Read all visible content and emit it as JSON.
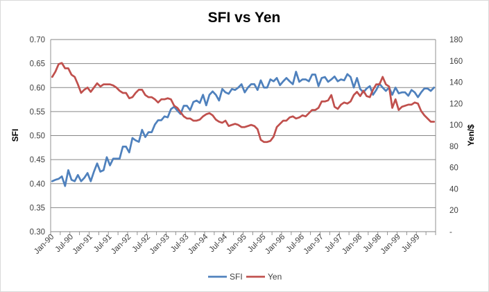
{
  "chart_data": {
    "type": "line",
    "title": "SFI vs Yen",
    "ylabel_left": "SFI",
    "ylabel_right": "Yen/$",
    "left_axis": {
      "min": 0.3,
      "max": 0.7,
      "step": 0.05,
      "tick_labels": [
        "0.30",
        "0.35",
        "0.40",
        "0.45",
        "0.50",
        "0.55",
        "0.60",
        "0.65",
        "0.70"
      ]
    },
    "right_axis": {
      "min": 0,
      "max": 180,
      "step": 20,
      "tick_labels": [
        "-",
        "20",
        "40",
        "60",
        "80",
        "100",
        "120",
        "140",
        "160",
        "180"
      ]
    },
    "x_tick_labels": [
      "Jan-90",
      "Jul-90",
      "Jan-91",
      "Jul-91",
      "Jan-92",
      "Jul-92",
      "Jan-93",
      "Jul-93",
      "Jan-94",
      "Jul-94",
      "Jan-95",
      "Jul-95",
      "Jan-96",
      "Jul-96",
      "Jan-97",
      "Jul-97",
      "Jan-98",
      "Jul-98",
      "Jan-99",
      "Jul-99"
    ],
    "grid": "horizontal",
    "legend_position": "bottom",
    "series": [
      {
        "name": "SFI",
        "axis": "left",
        "color": "#4f81bd",
        "start": "Jan-90",
        "frequency": "monthly",
        "values": [
          0.405,
          0.408,
          0.41,
          0.415,
          0.395,
          0.428,
          0.408,
          0.405,
          0.418,
          0.405,
          0.412,
          0.422,
          0.405,
          0.425,
          0.442,
          0.425,
          0.428,
          0.455,
          0.438,
          0.452,
          0.452,
          0.452,
          0.477,
          0.477,
          0.465,
          0.495,
          0.49,
          0.487,
          0.512,
          0.497,
          0.507,
          0.507,
          0.523,
          0.532,
          0.532,
          0.54,
          0.538,
          0.555,
          0.56,
          0.552,
          0.545,
          0.562,
          0.562,
          0.553,
          0.57,
          0.573,
          0.568,
          0.585,
          0.563,
          0.585,
          0.592,
          0.585,
          0.573,
          0.597,
          0.59,
          0.587,
          0.597,
          0.595,
          0.6,
          0.607,
          0.59,
          0.6,
          0.607,
          0.607,
          0.595,
          0.615,
          0.6,
          0.6,
          0.617,
          0.613,
          0.62,
          0.605,
          0.613,
          0.62,
          0.613,
          0.607,
          0.633,
          0.612,
          0.617,
          0.617,
          0.613,
          0.627,
          0.627,
          0.603,
          0.62,
          0.622,
          0.612,
          0.617,
          0.623,
          0.613,
          0.617,
          0.615,
          0.628,
          0.622,
          0.6,
          0.62,
          0.597,
          0.59,
          0.598,
          0.603,
          0.585,
          0.595,
          0.608,
          0.6,
          0.593,
          0.6,
          0.585,
          0.6,
          0.588,
          0.59,
          0.59,
          0.583,
          0.595,
          0.59,
          0.58,
          0.59,
          0.598,
          0.598,
          0.593,
          0.6
        ]
      },
      {
        "name": "Yen",
        "axis": "right",
        "color": "#c0504d",
        "start": "Jan-90",
        "frequency": "monthly",
        "values": [
          145,
          150,
          157,
          158,
          153,
          153,
          147,
          145,
          138,
          130,
          133,
          135,
          131,
          135,
          139,
          136,
          138,
          138,
          138,
          137,
          135,
          132,
          130,
          130,
          125,
          126,
          130,
          133,
          133,
          128,
          126,
          126,
          124,
          121,
          124,
          124,
          125,
          124,
          118,
          116,
          112,
          108,
          106,
          106,
          104,
          104,
          105,
          108,
          110,
          111,
          109,
          105,
          103,
          102,
          104,
          99,
          100,
          101,
          100,
          98,
          98,
          99,
          100,
          99,
          96,
          86,
          84,
          84,
          85,
          89,
          98,
          101,
          104,
          104,
          107,
          108,
          106,
          107,
          109,
          108,
          111,
          114,
          114,
          116,
          122,
          122,
          123,
          128,
          117,
          115,
          119,
          121,
          120,
          122,
          128,
          131,
          127,
          132,
          127,
          126,
          133,
          138,
          138,
          145,
          138,
          136,
          116,
          124,
          114,
          117,
          118,
          119,
          119,
          121,
          120,
          113,
          109,
          106,
          103,
          103
        ]
      }
    ]
  }
}
